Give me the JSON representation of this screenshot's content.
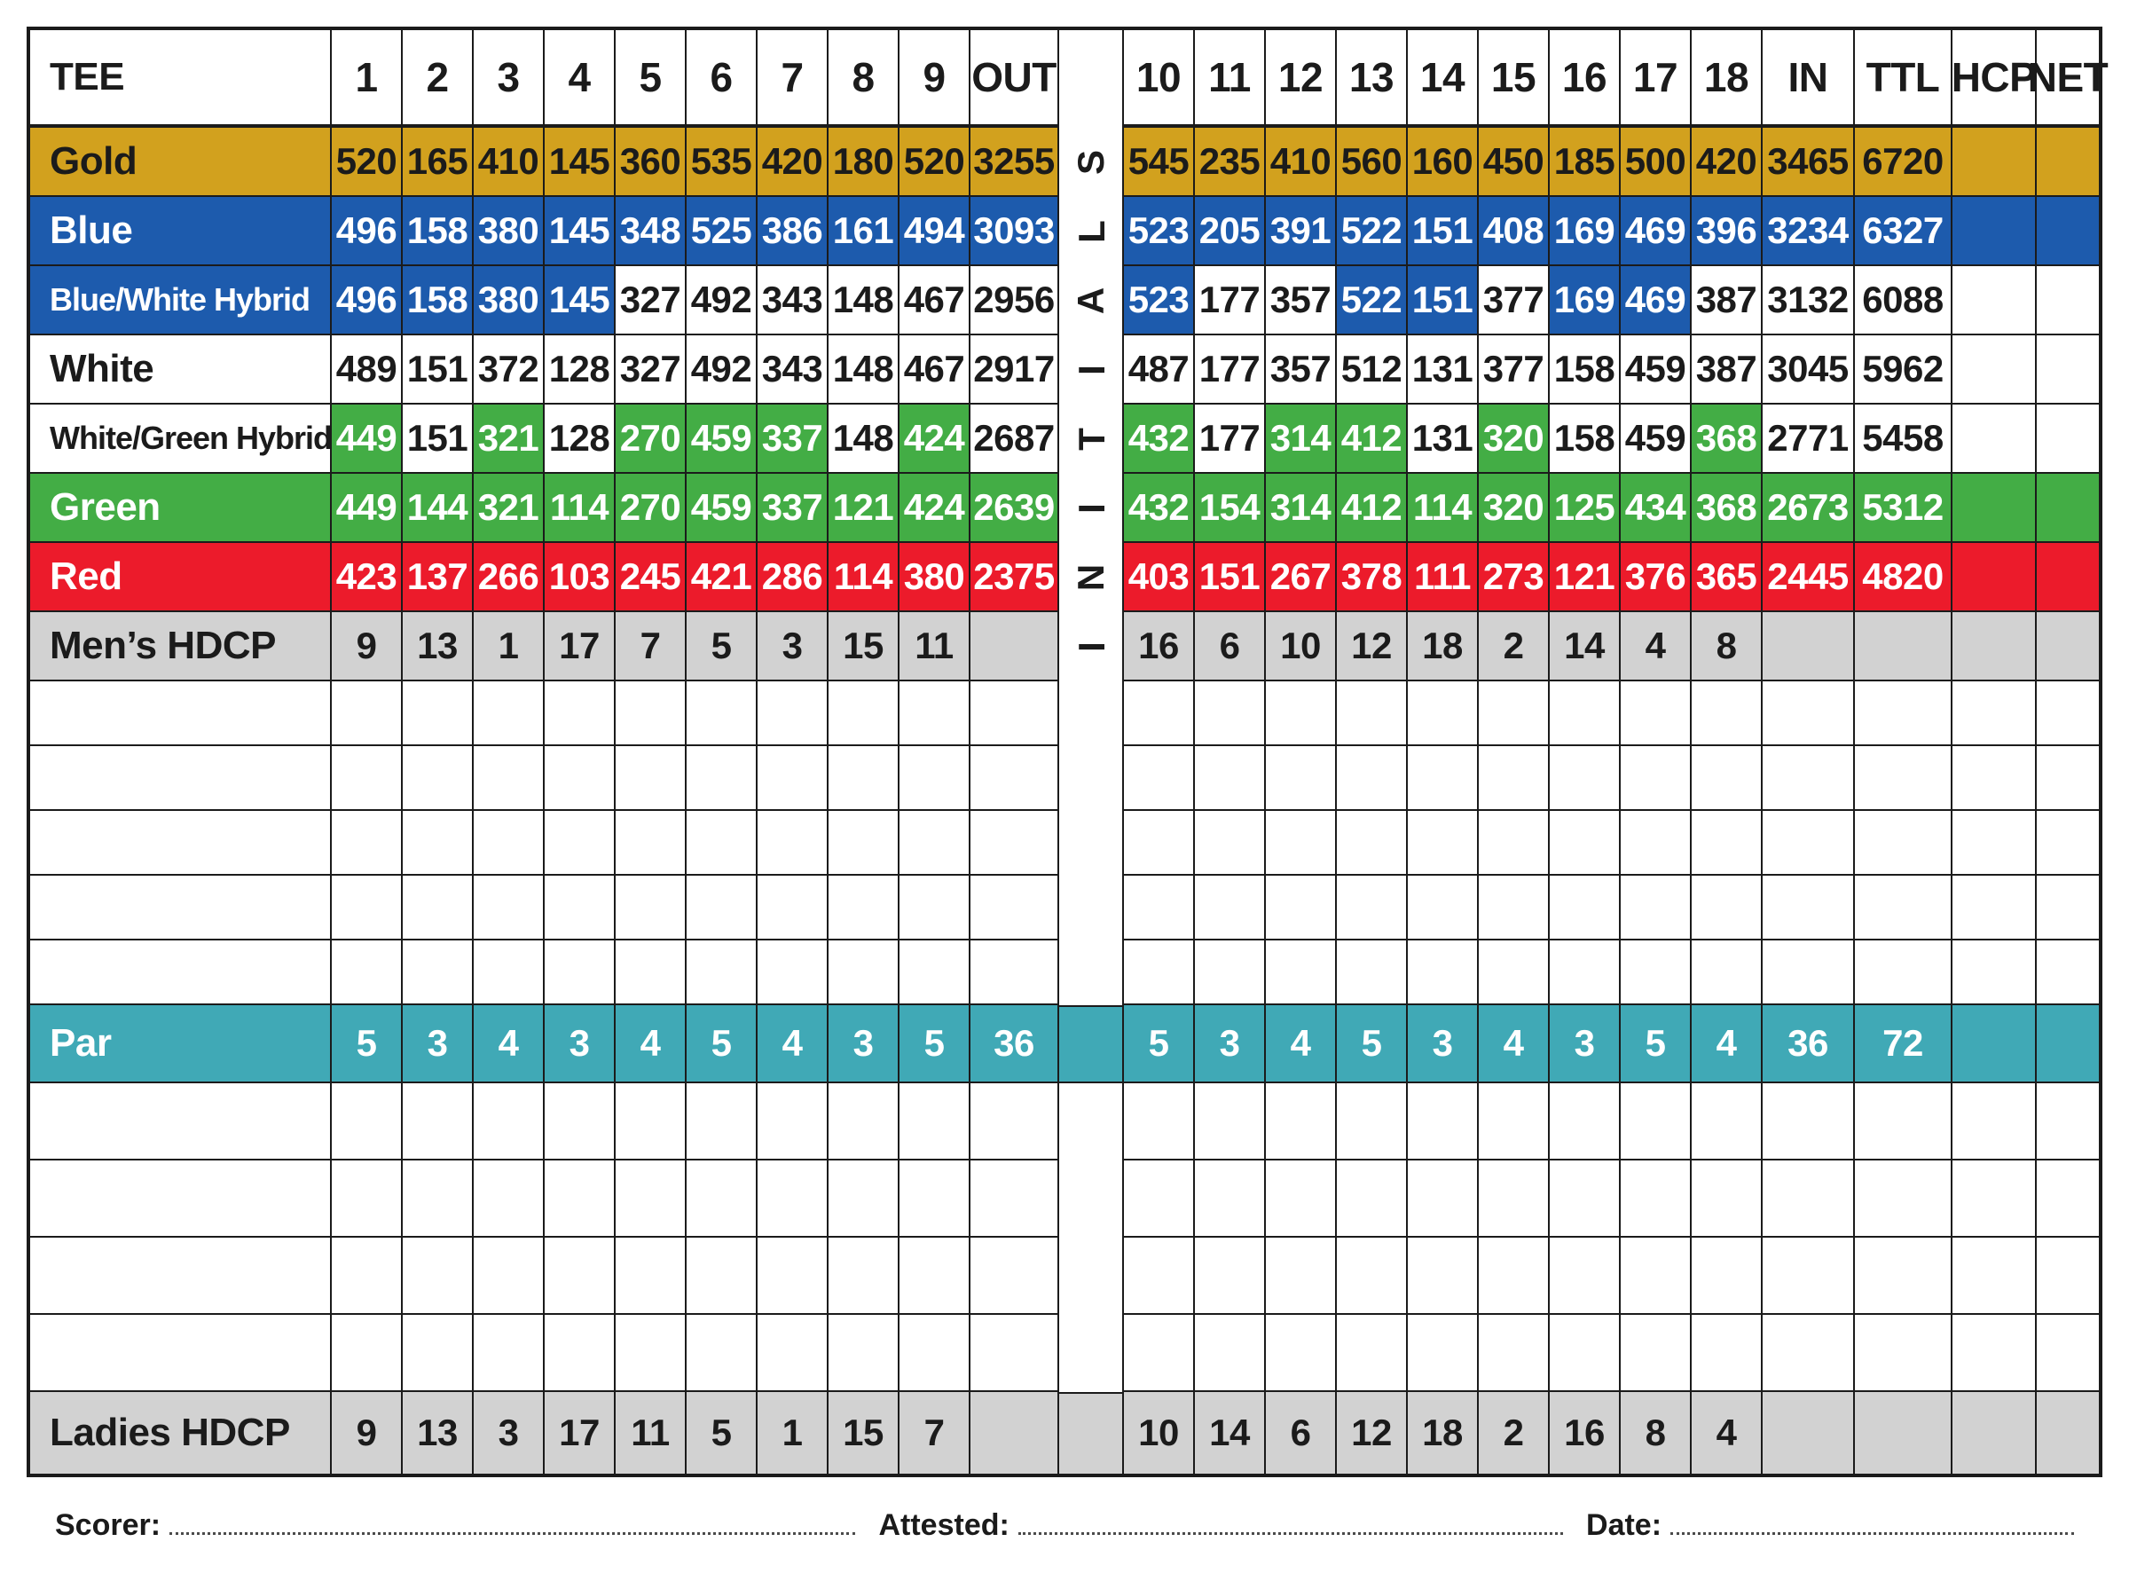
{
  "colors": {
    "gold": "#D2A11E",
    "blue": "#1D5BAD",
    "green": "#43AD45",
    "red": "#EC1B2B",
    "teal": "#40A9B6",
    "gray": "#D2D2D2",
    "border": "#1b1b1b",
    "white": "#ffffff"
  },
  "header": {
    "tee": "TEE",
    "holes_front": [
      "1",
      "2",
      "3",
      "4",
      "5",
      "6",
      "7",
      "8",
      "9"
    ],
    "out": "OUT",
    "holes_back": [
      "10",
      "11",
      "12",
      "13",
      "14",
      "15",
      "16",
      "17",
      "18"
    ],
    "in": "IN",
    "ttl": "TTL",
    "hcp": "HCP",
    "net": "NET"
  },
  "initials": {
    "text": "INITIALS",
    "letters_top_to_bottom": "SLAITINI"
  },
  "rows": [
    {
      "name": "gold",
      "hclass": "tee",
      "label": "Gold",
      "bg": "#D2A11E",
      "fg": "#1b1b1b",
      "front": [
        "520",
        "165",
        "410",
        "145",
        "360",
        "535",
        "420",
        "180",
        "520"
      ],
      "out": "3255",
      "back": [
        "545",
        "235",
        "410",
        "560",
        "160",
        "450",
        "185",
        "500",
        "420"
      ],
      "in": "3465",
      "ttl": "6720",
      "hcp": "",
      "net": ""
    },
    {
      "name": "blue",
      "hclass": "tee",
      "label": "Blue",
      "bg": "#1D5BAD",
      "fg": "#ffffff",
      "front": [
        "496",
        "158",
        "380",
        "145",
        "348",
        "525",
        "386",
        "161",
        "494"
      ],
      "out": "3093",
      "back": [
        "523",
        "205",
        "391",
        "522",
        "151",
        "408",
        "169",
        "469",
        "396"
      ],
      "in": "3234",
      "ttl": "6327",
      "hcp": "",
      "net": ""
    },
    {
      "name": "blue-white-hybrid",
      "hclass": "tee",
      "label": "Blue/White Hybrid",
      "bg": "#ffffff",
      "fg": "#1b1b1b",
      "accent_bg": "#1D5BAD",
      "accent_fg": "#ffffff",
      "label_accent": true,
      "front_accent": [
        1,
        1,
        1,
        1,
        0,
        0,
        0,
        0,
        0
      ],
      "back_accent": [
        1,
        0,
        0,
        1,
        1,
        0,
        1,
        1,
        0
      ],
      "front": [
        "496",
        "158",
        "380",
        "145",
        "327",
        "492",
        "343",
        "148",
        "467"
      ],
      "out": "2956",
      "back": [
        "523",
        "177",
        "357",
        "522",
        "151",
        "377",
        "169",
        "469",
        "387"
      ],
      "in": "3132",
      "ttl": "6088",
      "hcp": "",
      "net": ""
    },
    {
      "name": "white",
      "hclass": "tee",
      "label": "White",
      "bg": "#ffffff",
      "fg": "#1b1b1b",
      "front": [
        "489",
        "151",
        "372",
        "128",
        "327",
        "492",
        "343",
        "148",
        "467"
      ],
      "out": "2917",
      "back": [
        "487",
        "177",
        "357",
        "512",
        "131",
        "377",
        "158",
        "459",
        "387"
      ],
      "in": "3045",
      "ttl": "5962",
      "hcp": "",
      "net": ""
    },
    {
      "name": "white-green-hybrid",
      "hclass": "tee",
      "label": "White/Green Hybrid",
      "bg": "#ffffff",
      "fg": "#1b1b1b",
      "accent_bg": "#43AD45",
      "accent_fg": "#ffffff",
      "label_accent": false,
      "front_accent": [
        1,
        0,
        1,
        0,
        1,
        1,
        1,
        0,
        1
      ],
      "back_accent": [
        1,
        0,
        1,
        1,
        0,
        1,
        0,
        0,
        1
      ],
      "front": [
        "449",
        "151",
        "321",
        "128",
        "270",
        "459",
        "337",
        "148",
        "424"
      ],
      "out": "2687",
      "back": [
        "432",
        "177",
        "314",
        "412",
        "131",
        "320",
        "158",
        "459",
        "368"
      ],
      "in": "2771",
      "ttl": "5458",
      "hcp": "",
      "net": ""
    },
    {
      "name": "green",
      "hclass": "tee",
      "label": "Green",
      "bg": "#43AD45",
      "fg": "#ffffff",
      "front": [
        "449",
        "144",
        "321",
        "114",
        "270",
        "459",
        "337",
        "121",
        "424"
      ],
      "out": "2639",
      "back": [
        "432",
        "154",
        "314",
        "412",
        "114",
        "320",
        "125",
        "434",
        "368"
      ],
      "in": "2673",
      "ttl": "5312",
      "hcp": "",
      "net": ""
    },
    {
      "name": "red",
      "hclass": "tee",
      "label": "Red",
      "bg": "#EC1B2B",
      "fg": "#ffffff",
      "front": [
        "423",
        "137",
        "266",
        "103",
        "245",
        "421",
        "286",
        "114",
        "380"
      ],
      "out": "2375",
      "back": [
        "403",
        "151",
        "267",
        "378",
        "111",
        "273",
        "121",
        "376",
        "365"
      ],
      "in": "2445",
      "ttl": "4820",
      "hcp": "",
      "net": ""
    },
    {
      "name": "mens-hdcp",
      "hclass": "tee",
      "label": "Men’s HDCP",
      "bg": "#D2D2D2",
      "fg": "#1b1b1b",
      "front": [
        "9",
        "13",
        "1",
        "17",
        "7",
        "5",
        "3",
        "15",
        "11"
      ],
      "out": "",
      "back": [
        "16",
        "6",
        "10",
        "12",
        "18",
        "2",
        "14",
        "4",
        "8"
      ],
      "in": "",
      "ttl": "",
      "hcp": "",
      "net": ""
    },
    {
      "name": "blank-1",
      "hclass": "blank-a",
      "blank": true,
      "label": ""
    },
    {
      "name": "blank-2",
      "hclass": "blank-a",
      "blank": true,
      "label": ""
    },
    {
      "name": "blank-3",
      "hclass": "blank-a",
      "blank": true,
      "label": ""
    },
    {
      "name": "blank-4",
      "hclass": "blank-a",
      "blank": true,
      "label": ""
    },
    {
      "name": "blank-5",
      "hclass": "blank-a",
      "blank": true,
      "label": ""
    },
    {
      "name": "par",
      "hclass": "par",
      "label": "Par",
      "bg": "#40A9B6",
      "fg": "#ffffff",
      "strip_colored": true,
      "front": [
        "5",
        "3",
        "4",
        "3",
        "4",
        "5",
        "4",
        "3",
        "5"
      ],
      "out": "36",
      "back": [
        "5",
        "3",
        "4",
        "5",
        "3",
        "4",
        "3",
        "5",
        "4"
      ],
      "in": "36",
      "ttl": "72",
      "hcp": "",
      "net": ""
    },
    {
      "name": "blank-6",
      "hclass": "blank-b",
      "blank": true,
      "label": ""
    },
    {
      "name": "blank-7",
      "hclass": "blank-b",
      "blank": true,
      "label": ""
    },
    {
      "name": "blank-8",
      "hclass": "blank-b",
      "blank": true,
      "label": ""
    },
    {
      "name": "blank-9",
      "hclass": "blank-b",
      "blank": true,
      "label": ""
    },
    {
      "name": "ladies-hdcp",
      "hclass": "ladies",
      "label": "Ladies HDCP",
      "bg": "#D2D2D2",
      "fg": "#1b1b1b",
      "strip_colored": true,
      "front": [
        "9",
        "13",
        "3",
        "17",
        "11",
        "5",
        "1",
        "15",
        "7"
      ],
      "out": "",
      "back": [
        "10",
        "14",
        "6",
        "12",
        "18",
        "2",
        "16",
        "8",
        "4"
      ],
      "in": "",
      "ttl": "",
      "hcp": "",
      "net": ""
    }
  ],
  "footer": {
    "scorer_label": "Scorer:",
    "attested_label": "Attested:",
    "date_label": "Date:"
  }
}
